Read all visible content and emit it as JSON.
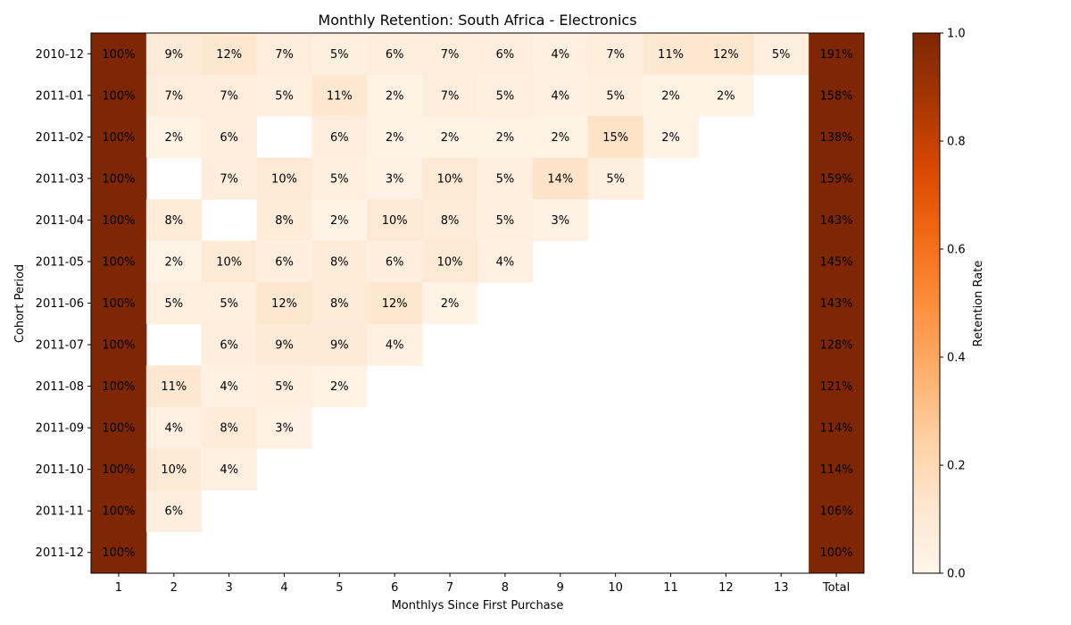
{
  "chart_data": {
    "type": "heatmap",
    "title": "Monthly Retention: South Africa - Electronics",
    "xlabel": "Monthlys Since First Purchase",
    "ylabel": "Cohort Period",
    "x_categories": [
      "1",
      "2",
      "3",
      "4",
      "5",
      "6",
      "7",
      "8",
      "9",
      "10",
      "11",
      "12",
      "13",
      "Total"
    ],
    "y_categories": [
      "2010-12",
      "2011-01",
      "2011-02",
      "2011-03",
      "2011-04",
      "2011-05",
      "2011-06",
      "2011-07",
      "2011-08",
      "2011-09",
      "2011-10",
      "2011-11",
      "2011-12"
    ],
    "values": [
      [
        100,
        9,
        12,
        7,
        5,
        6,
        7,
        6,
        4,
        7,
        11,
        12,
        5
      ],
      [
        100,
        7,
        7,
        5,
        11,
        2,
        7,
        5,
        4,
        5,
        2,
        2,
        null
      ],
      [
        100,
        2,
        6,
        null,
        6,
        2,
        2,
        2,
        2,
        15,
        2,
        null,
        null
      ],
      [
        100,
        null,
        7,
        10,
        5,
        3,
        10,
        5,
        14,
        5,
        null,
        null,
        null
      ],
      [
        100,
        8,
        null,
        8,
        2,
        10,
        8,
        5,
        3,
        null,
        null,
        null,
        null
      ],
      [
        100,
        2,
        10,
        6,
        8,
        6,
        10,
        4,
        null,
        null,
        null,
        null,
        null
      ],
      [
        100,
        5,
        5,
        12,
        8,
        12,
        2,
        null,
        null,
        null,
        null,
        null,
        null
      ],
      [
        100,
        null,
        6,
        9,
        9,
        4,
        null,
        null,
        null,
        null,
        null,
        null,
        null
      ],
      [
        100,
        11,
        4,
        5,
        2,
        null,
        null,
        null,
        null,
        null,
        null,
        null,
        null
      ],
      [
        100,
        4,
        8,
        3,
        null,
        null,
        null,
        null,
        null,
        null,
        null,
        null,
        null
      ],
      [
        100,
        10,
        4,
        null,
        null,
        null,
        null,
        null,
        null,
        null,
        null,
        null,
        null
      ],
      [
        100,
        6,
        null,
        null,
        null,
        null,
        null,
        null,
        null,
        null,
        null,
        null,
        null
      ],
      [
        100,
        null,
        null,
        null,
        null,
        null,
        null,
        null,
        null,
        null,
        null,
        null,
        null
      ]
    ],
    "totals": [
      191,
      158,
      138,
      159,
      143,
      145,
      143,
      128,
      121,
      114,
      114,
      106,
      100
    ],
    "value_format": "percent",
    "colorbar": {
      "label": "Retention Rate",
      "min": 0.0,
      "max": 1.0,
      "ticks": [
        "0.0",
        "0.2",
        "0.4",
        "0.6",
        "0.8",
        "1.0"
      ],
      "colormap": "Oranges"
    },
    "colors": {
      "empty": "#ffffff",
      "max": "#7f2704"
    },
    "grid": false
  }
}
